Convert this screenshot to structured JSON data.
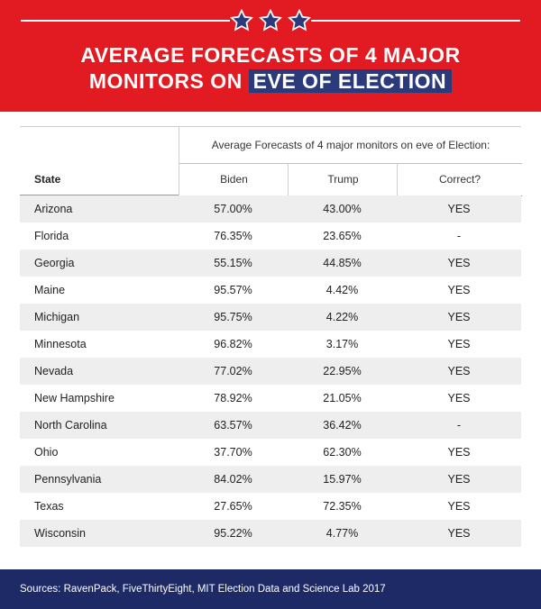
{
  "header": {
    "title_line1": "AVERAGE FORECASTS OF 4  MAJOR",
    "title_line2_plain": "MONITORS ON ",
    "title_line2_highlight": "EVE OF ELECTION",
    "bg_color": "#e21b23",
    "highlight_color": "#2a3a7a",
    "star_icons": [
      "star-icon",
      "star-icon",
      "star-icon"
    ],
    "star_color": "#2a3a7a"
  },
  "chart_data": {
    "type": "table",
    "subheader": "Average Forecasts of 4  major monitors on eve of Election:",
    "columns": [
      "State",
      "Biden",
      "Trump",
      "Correct?"
    ],
    "rows": [
      {
        "state": "Arizona",
        "biden": "57.00%",
        "trump": "43.00%",
        "correct": "YES"
      },
      {
        "state": "Florida",
        "biden": "76.35%",
        "trump": "23.65%",
        "correct": "-"
      },
      {
        "state": "Georgia",
        "biden": "55.15%",
        "trump": "44.85%",
        "correct": "YES"
      },
      {
        "state": "Maine",
        "biden": "95.57%",
        "trump": "4.42%",
        "correct": "YES"
      },
      {
        "state": "Michigan",
        "biden": "95.75%",
        "trump": "4.22%",
        "correct": "YES"
      },
      {
        "state": "Minnesota",
        "biden": "96.82%",
        "trump": "3.17%",
        "correct": "YES"
      },
      {
        "state": "Nevada",
        "biden": "77.02%",
        "trump": "22.95%",
        "correct": "YES"
      },
      {
        "state": "New Hampshire",
        "biden": "78.92%",
        "trump": "21.05%",
        "correct": "YES"
      },
      {
        "state": "North Carolina",
        "biden": "63.57%",
        "trump": "36.42%",
        "correct": "-"
      },
      {
        "state": "Ohio",
        "biden": "37.70%",
        "trump": "62.30%",
        "correct": "YES"
      },
      {
        "state": "Pennsylvania",
        "biden": "84.02%",
        "trump": "15.97%",
        "correct": "YES"
      },
      {
        "state": "Texas",
        "biden": "27.65%",
        "trump": "72.35%",
        "correct": "YES"
      },
      {
        "state": "Wisconsin",
        "biden": "95.22%",
        "trump": "4.77%",
        "correct": "YES"
      }
    ]
  },
  "footer": {
    "sources": "Sources: RavenPack, FiveThirtyEight, MIT Election Data and Science Lab 2017",
    "bg_color": "#1e2a66"
  }
}
